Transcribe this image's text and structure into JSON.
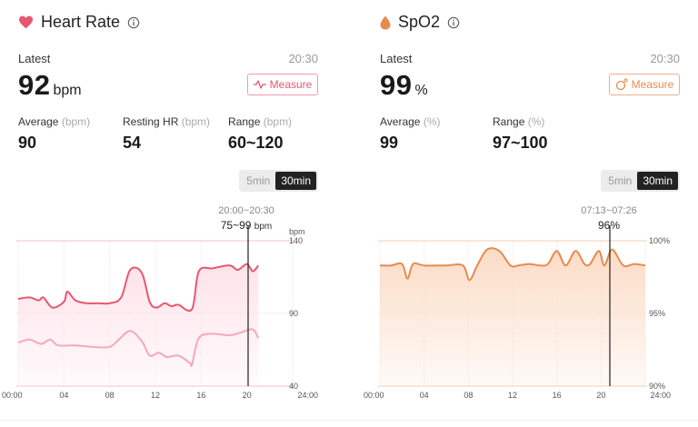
{
  "heart_rate": {
    "title": "Heart Rate",
    "latest_label": "Latest",
    "time": "20:30",
    "latest_value": "92",
    "latest_unit": "bpm",
    "measure_label": "Measure",
    "stats": [
      {
        "label": "Average",
        "unit": "(bpm)",
        "value": "90"
      },
      {
        "label": "Resting HR",
        "unit": "(bpm)",
        "value": "54"
      },
      {
        "label": "Range",
        "unit": "(bpm)",
        "value": "60~120"
      }
    ],
    "toggle": {
      "options": [
        "5min",
        "30min"
      ],
      "selected": "30min"
    },
    "tooltip": {
      "range": "20:00~20:30",
      "value": "75~99",
      "unit": "bpm"
    },
    "chart_unit": "bpm",
    "y_ticks": [
      "140",
      "90",
      "40"
    ],
    "x_ticks": [
      "00:00",
      "04",
      "08",
      "12",
      "16",
      "20",
      "24:00"
    ],
    "colors": {
      "accent": "#e8566f",
      "fill": "#fde3ea",
      "lower_line": "#f7a8ba"
    }
  },
  "spo2": {
    "title": "SpO2",
    "latest_label": "Latest",
    "time": "20:30",
    "latest_value": "99",
    "latest_unit": "%",
    "measure_label": "Measure",
    "stats": [
      {
        "label": "Average",
        "unit": "(%)",
        "value": "99"
      },
      {
        "label": "Range",
        "unit": "(%)",
        "value": "97~100"
      }
    ],
    "toggle": {
      "options": [
        "5min",
        "30min"
      ],
      "selected": "30min"
    },
    "tooltip": {
      "range": "07:13~07:26",
      "value": "96%"
    },
    "y_ticks": [
      "100%",
      "95%",
      "90%"
    ],
    "x_ticks": [
      "00:00",
      "04",
      "08",
      "12",
      "16",
      "20",
      "24:00"
    ],
    "colors": {
      "accent": "#e88a4e",
      "fill": "#fbdcc6"
    }
  },
  "chart_data": [
    {
      "type": "area",
      "title": "",
      "ylabel": "bpm",
      "ylim": [
        40,
        140
      ],
      "x_unit": "hours",
      "series": [
        {
          "values": [
            [
              0,
              100
            ],
            [
              1,
              101
            ],
            [
              1.8,
              99
            ],
            [
              2.2,
              101
            ],
            [
              3,
              94
            ],
            [
              4,
              98
            ],
            [
              4.3,
              105
            ],
            [
              5,
              99
            ],
            [
              6,
              97
            ],
            [
              7,
              97
            ],
            [
              8,
              97
            ],
            [
              9,
              101
            ],
            [
              9.8,
              120
            ],
            [
              10.8,
              118
            ],
            [
              11.5,
              98
            ],
            [
              12.1,
              94
            ],
            [
              12.8,
              97
            ],
            [
              13.4,
              95
            ],
            [
              14,
              96
            ],
            [
              15.2,
              93
            ],
            [
              15.8,
              119
            ],
            [
              17,
              121
            ],
            [
              18.5,
              123
            ],
            [
              19.2,
              120
            ],
            [
              20,
              124
            ],
            [
              20.5,
              119
            ],
            [
              21,
              123
            ]
          ]
        },
        {
          "values": [
            [
              0,
              70
            ],
            [
              1,
              72
            ],
            [
              2,
              69
            ],
            [
              2.8,
              72
            ],
            [
              3.5,
              68
            ],
            [
              5,
              68
            ],
            [
              6.5,
              67
            ],
            [
              8,
              67
            ],
            [
              8.8,
              72
            ],
            [
              9.8,
              78
            ],
            [
              10.8,
              71
            ],
            [
              11.5,
              61
            ],
            [
              12.3,
              63
            ],
            [
              13,
              60
            ],
            [
              14,
              61
            ],
            [
              15,
              56
            ],
            [
              15.2,
              55
            ],
            [
              15.8,
              73
            ],
            [
              17,
              76
            ],
            [
              18.5,
              75
            ],
            [
              19.5,
              77
            ],
            [
              20.5,
              79
            ],
            [
              21,
              73
            ]
          ]
        }
      ]
    },
    {
      "type": "area",
      "title": "",
      "ylim": [
        90,
        100
      ],
      "y_unit": "%",
      "x_unit": "hours",
      "series": [
        {
          "values": [
            [
              0,
              98.3
            ],
            [
              1,
              98.3
            ],
            [
              2,
              98.4
            ],
            [
              2.5,
              97.4
            ],
            [
              3,
              98.4
            ],
            [
              4,
              98.3
            ],
            [
              6,
              98.3
            ],
            [
              7.5,
              98.3
            ],
            [
              8.1,
              97.3
            ],
            [
              8.8,
              98.3
            ],
            [
              9.7,
              99.4
            ],
            [
              10.8,
              99.3
            ],
            [
              11.8,
              98.3
            ],
            [
              12.5,
              98.3
            ],
            [
              13.5,
              98.4
            ],
            [
              14.5,
              98.3
            ],
            [
              15.2,
              98.4
            ],
            [
              16,
              99.3
            ],
            [
              16.8,
              98.3
            ],
            [
              17.7,
              99.3
            ],
            [
              18.5,
              98.4
            ],
            [
              19,
              98.4
            ],
            [
              19.8,
              99.3
            ],
            [
              20.3,
              98.3
            ],
            [
              21,
              99.4
            ],
            [
              22,
              98.3
            ],
            [
              23,
              98.4
            ],
            [
              24,
              98.3
            ]
          ]
        }
      ]
    }
  ]
}
